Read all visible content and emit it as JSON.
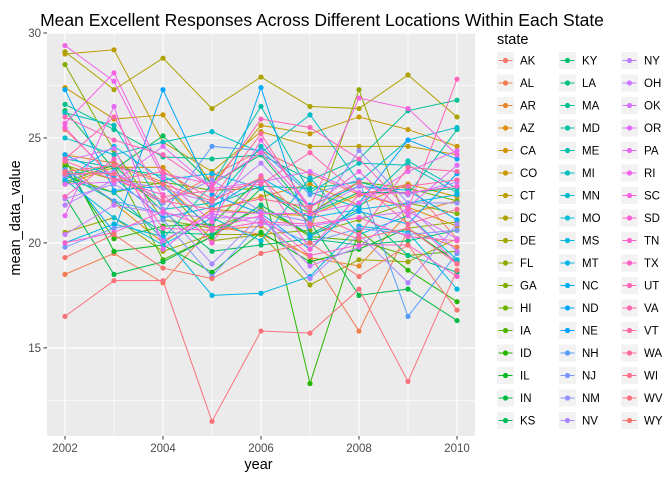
{
  "chart_data": {
    "type": "line",
    "title": "Mean Excellent Responses Across Different Locations Within Each State",
    "xlabel": "year",
    "ylabel": "mean_data_value",
    "legend_title": "state",
    "legend_placement": "right",
    "grid": true,
    "xlim": [
      2002,
      2010
    ],
    "ylim": [
      10.8,
      30.0
    ],
    "x_ticks": [
      2002,
      2004,
      2006,
      2008,
      2010
    ],
    "y_ticks": [
      15,
      20,
      25,
      30
    ],
    "x": [
      2002,
      2003,
      2004,
      2005,
      2006,
      2007,
      2008,
      2009,
      2010
    ],
    "series": [
      {
        "name": "AK",
        "color": "#F8766D",
        "values": [
          25.4,
          23.1,
          21.9,
          23.2,
          24.4,
          23.3,
          22.3,
          22.8,
          20.2
        ]
      },
      {
        "name": "AL",
        "color": "#F17D50",
        "values": [
          18.5,
          19.5,
          18.1,
          20.8,
          20.4,
          19.4,
          15.8,
          20.6,
          19.8
        ]
      },
      {
        "name": "AR",
        "color": "#E8852A",
        "values": [
          24.2,
          23.8,
          22.9,
          20.6,
          20.8,
          19.3,
          18.9,
          21.4,
          22.0
        ]
      },
      {
        "name": "AZ",
        "color": "#DE8C00",
        "values": [
          23.8,
          21.9,
          20.0,
          21.6,
          21.4,
          21.3,
          22.3,
          21.7,
          20.8
        ]
      },
      {
        "name": "CA",
        "color": "#D39200",
        "values": [
          22.8,
          23.6,
          23.6,
          21.6,
          22.2,
          22.8,
          21.8,
          22.8,
          22.2
        ]
      },
      {
        "name": "CO",
        "color": "#C79800",
        "values": [
          27.4,
          25.9,
          26.1,
          22.8,
          25.6,
          25.2,
          26.0,
          25.4,
          24.6
        ]
      },
      {
        "name": "CT",
        "color": "#BB9D00",
        "values": [
          29.0,
          29.2,
          24.8,
          23.4,
          25.3,
          24.6,
          24.6,
          24.6,
          24.2
        ]
      },
      {
        "name": "DC",
        "color": "#AEA200",
        "values": [
          29.1,
          27.3,
          28.8,
          26.4,
          27.9,
          26.5,
          26.4,
          28.0,
          26.0
        ]
      },
      {
        "name": "DE",
        "color": "#A0A600",
        "values": [
          20.5,
          21.2,
          19.6,
          20.4,
          20.4,
          18.0,
          19.2,
          19.1,
          20.2
        ]
      },
      {
        "name": "FL",
        "color": "#91AA00",
        "values": [
          23.7,
          23.0,
          22.8,
          20.1,
          20.4,
          20.6,
          27.3,
          20.7,
          21.0
        ]
      },
      {
        "name": "GA",
        "color": "#7FAE00",
        "values": [
          28.5,
          24.4,
          21.1,
          20.7,
          21.6,
          20.4,
          21.1,
          21.9,
          21.4
        ]
      },
      {
        "name": "HI",
        "color": "#6AB100",
        "values": [
          23.2,
          22.4,
          22.9,
          22.5,
          22.6,
          21.4,
          22.9,
          22.6,
          22.0
        ]
      },
      {
        "name": "IA",
        "color": "#50B400",
        "values": [
          22.9,
          23.7,
          19.2,
          20.3,
          21.8,
          20.3,
          20.1,
          19.4,
          19.6
        ]
      },
      {
        "name": "ID",
        "color": "#24B700",
        "values": [
          23.6,
          20.2,
          20.8,
          20.9,
          23.1,
          13.3,
          20.6,
          18.7,
          17.2
        ]
      },
      {
        "name": "IL",
        "color": "#00B91F",
        "values": [
          24.0,
          19.6,
          19.9,
          18.6,
          20.5,
          19.1,
          19.7,
          20.7,
          19.1
        ]
      },
      {
        "name": "IN",
        "color": "#00BB44",
        "values": [
          22.2,
          18.5,
          19.1,
          20.3,
          22.6,
          21.0,
          17.5,
          17.8,
          16.3
        ]
      },
      {
        "name": "KS",
        "color": "#00BC5C",
        "values": [
          26.3,
          23.5,
          25.1,
          22.8,
          24.2,
          21.4,
          22.4,
          22.4,
          22.6
        ]
      },
      {
        "name": "KY",
        "color": "#00BE70",
        "values": [
          23.2,
          23.7,
          21.5,
          19.6,
          19.9,
          20.2,
          19.9,
          20.1,
          20.6
        ]
      },
      {
        "name": "LA",
        "color": "#00BF82",
        "values": [
          23.3,
          22.0,
          20.5,
          20.4,
          21.8,
          20.4,
          21.6,
          19.4,
          18.6
        ]
      },
      {
        "name": "MA",
        "color": "#00C092",
        "values": [
          26.6,
          25.4,
          24.1,
          24.0,
          24.2,
          23.0,
          24.0,
          26.3,
          26.8
        ]
      },
      {
        "name": "MD",
        "color": "#00C0A2",
        "values": [
          24.0,
          23.6,
          23.2,
          21.8,
          22.7,
          22.6,
          22.9,
          22.3,
          25.4
        ]
      },
      {
        "name": "ME",
        "color": "#00C0B0",
        "values": [
          23.0,
          22.4,
          20.2,
          22.8,
          26.5,
          22.4,
          21.7,
          23.9,
          22.6
        ]
      },
      {
        "name": "MI",
        "color": "#00BFBE",
        "values": [
          26.2,
          25.6,
          21.6,
          21.9,
          24.6,
          22.4,
          23.8,
          23.7,
          22.4
        ]
      },
      {
        "name": "MN",
        "color": "#00BDCA",
        "values": [
          25.0,
          24.2,
          24.8,
          25.3,
          24.3,
          26.1,
          22.9,
          24.9,
          25.5
        ]
      },
      {
        "name": "MO",
        "color": "#00BBD6",
        "values": [
          23.0,
          21.2,
          19.9,
          21.2,
          20.1,
          23.1,
          20.4,
          21.3,
          19.2
        ]
      },
      {
        "name": "MS",
        "color": "#00B7E1",
        "values": [
          20.0,
          20.9,
          20.3,
          17.5,
          17.6,
          18.4,
          20.8,
          20.5,
          17.8
        ]
      },
      {
        "name": "MT",
        "color": "#00B3EA",
        "values": [
          23.0,
          24.6,
          23.0,
          23.3,
          22.6,
          21.2,
          21.6,
          21.9,
          22.3
        ]
      },
      {
        "name": "NC",
        "color": "#00AEF4",
        "values": [
          24.2,
          23.1,
          21.2,
          21.7,
          23.1,
          21.8,
          22.7,
          22.5,
          21.1
        ]
      },
      {
        "name": "ND",
        "color": "#00A9FB",
        "values": [
          27.3,
          22.5,
          22.7,
          20.7,
          27.4,
          20.3,
          21.5,
          20.9,
          23.3
        ]
      },
      {
        "name": "NE",
        "color": "#00A3FF",
        "values": [
          23.5,
          20.5,
          27.3,
          22.3,
          21.4,
          19.7,
          21.9,
          24.9,
          24.0
        ]
      },
      {
        "name": "NH",
        "color": "#569DFF",
        "values": [
          23.5,
          22.0,
          21.4,
          24.6,
          24.4,
          22.3,
          23.0,
          16.5,
          19.5
        ]
      },
      {
        "name": "NJ",
        "color": "#7A96FF",
        "values": [
          19.8,
          20.7,
          21.1,
          18.4,
          21.0,
          20.0,
          20.7,
          20.4,
          20.6
        ]
      },
      {
        "name": "NM",
        "color": "#948FFF",
        "values": [
          23.2,
          23.4,
          21.9,
          23.0,
          21.5,
          21.0,
          24.4,
          21.9,
          21.9
        ]
      },
      {
        "name": "NV",
        "color": "#A988FF",
        "values": [
          22.1,
          22.8,
          21.6,
          19.0,
          21.3,
          18.3,
          20.4,
          18.1,
          20.9
        ]
      },
      {
        "name": "NY",
        "color": "#BA80FF",
        "values": [
          21.8,
          23.0,
          22.6,
          21.9,
          23.8,
          21.4,
          22.7,
          22.3,
          22.9
        ]
      },
      {
        "name": "OH",
        "color": "#C978FF",
        "values": [
          20.4,
          21.8,
          21.4,
          21.2,
          21.2,
          18.9,
          19.8,
          21.7,
          19.6
        ]
      },
      {
        "name": "OK",
        "color": "#D572FF",
        "values": [
          23.9,
          24.5,
          20.1,
          21.4,
          20.9,
          20.8,
          21.2,
          21.5,
          20.2
        ]
      },
      {
        "name": "OR",
        "color": "#E06CFA",
        "values": [
          22.8,
          22.9,
          24.6,
          22.6,
          22.9,
          23.4,
          22.4,
          21.7,
          23.7
        ]
      },
      {
        "name": "PA",
        "color": "#E968F2",
        "values": [
          21.3,
          26.5,
          19.7,
          21.5,
          21.4,
          21.4,
          21.9,
          23.4,
          24.4
        ]
      },
      {
        "name": "RI",
        "color": "#F064EA",
        "values": [
          29.4,
          27.7,
          23.1,
          21.0,
          24.9,
          21.7,
          23.4,
          21.3,
          19.0
        ]
      },
      {
        "name": "SC",
        "color": "#F663E1",
        "values": [
          25.7,
          28.1,
          23.3,
          22.8,
          24.3,
          21.7,
          26.9,
          26.4,
          24.2
        ]
      },
      {
        "name": "SD",
        "color": "#FB61D7",
        "values": [
          25.5,
          23.0,
          22.3,
          20.0,
          23.2,
          19.7,
          22.3,
          22.4,
          22.7
        ]
      },
      {
        "name": "TN",
        "color": "#FE61CF",
        "values": [
          20.0,
          20.5,
          21.5,
          20.7,
          21.3,
          19.4,
          19.9,
          19.9,
          18.4
        ]
      },
      {
        "name": "TX",
        "color": "#FF62C5",
        "values": [
          22.2,
          24.0,
          20.7,
          20.6,
          21.0,
          20.9,
          21.2,
          20.3,
          20.1
        ]
      },
      {
        "name": "UT",
        "color": "#FF64BB",
        "values": [
          26.0,
          24.9,
          24.2,
          22.6,
          25.9,
          25.5,
          24.0,
          21.6,
          27.8
        ]
      },
      {
        "name": "VA",
        "color": "#FF67B0",
        "values": [
          24.0,
          26.0,
          22.2,
          22.5,
          22.8,
          24.3,
          22.3,
          22.7,
          23.0
        ]
      },
      {
        "name": "VT",
        "color": "#FF6AA4",
        "values": [
          23.9,
          23.0,
          23.4,
          22.1,
          25.2,
          21.5,
          20.4,
          23.6,
          23.4
        ]
      },
      {
        "name": "WA",
        "color": "#FF6C98",
        "values": [
          23.3,
          23.3,
          22.0,
          21.6,
          22.1,
          21.7,
          22.9,
          20.9,
          21.6
        ]
      },
      {
        "name": "WI",
        "color": "#FD6F8A",
        "values": [
          23.4,
          23.7,
          22.8,
          22.0,
          23.1,
          20.9,
          20.2,
          20.7,
          19.0
        ]
      },
      {
        "name": "WV",
        "color": "#FA727C",
        "values": [
          16.5,
          18.2,
          18.2,
          11.5,
          15.8,
          15.7,
          17.8,
          13.4,
          18.7
        ]
      },
      {
        "name": "WY",
        "color": "#F7746E",
        "values": [
          19.3,
          20.4,
          18.8,
          18.3,
          19.5,
          20.0,
          18.4,
          19.9,
          16.8
        ]
      }
    ]
  }
}
